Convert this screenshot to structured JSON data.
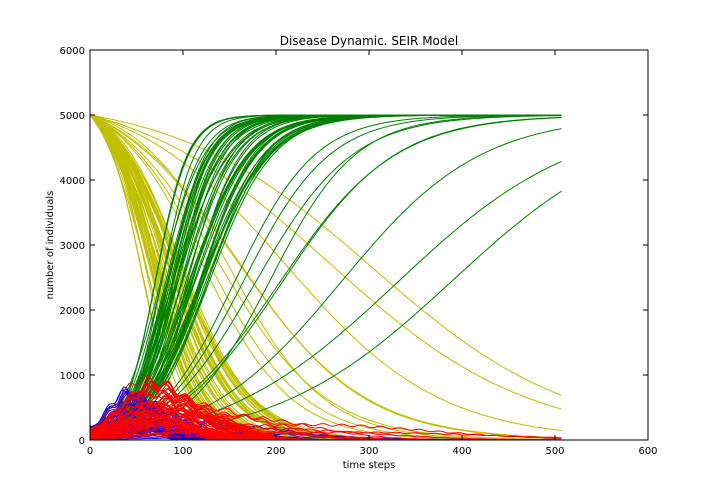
{
  "chart_data": {
    "type": "line",
    "title": "Disease Dynamic. SEIR Model",
    "xlabel": "time steps",
    "ylabel": "number of individuals",
    "xlim": [
      0,
      600
    ],
    "ylim": [
      0,
      6000
    ],
    "xticks": [
      "0",
      "100",
      "200",
      "300",
      "400",
      "500",
      "600"
    ],
    "yticks": [
      "0",
      "1000",
      "2000",
      "3000",
      "4000",
      "5000",
      "6000"
    ],
    "grid": false,
    "legend": null,
    "x_end": 508,
    "population": 5000,
    "groups": [
      {
        "compartment": "S",
        "color": "#bfbf00",
        "runs": 60
      },
      {
        "compartment": "E",
        "color": "#0000ff",
        "runs": 60
      },
      {
        "compartment": "I",
        "color": "#ff0000",
        "runs": 60
      },
      {
        "compartment": "R",
        "color": "#008000",
        "runs": 60
      }
    ],
    "series_summary": {
      "S": {
        "start": 5000,
        "end": 0,
        "typical_half_time": 85,
        "slowest_half_time": 250
      },
      "E": {
        "start": 50,
        "peak": 700,
        "peak_time": 45,
        "end": 0
      },
      "I": {
        "start": 0,
        "peak": 850,
        "peak_time": 65,
        "end": 0
      },
      "R": {
        "start": 0,
        "end": 5000,
        "typical_half_time": 110,
        "slowest_half_time": 390
      }
    }
  }
}
